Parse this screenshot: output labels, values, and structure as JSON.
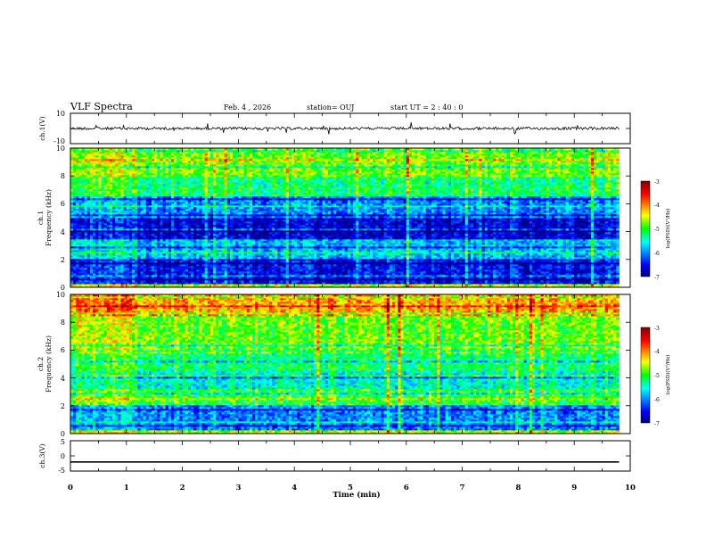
{
  "header": {
    "title": "VLF Spectra",
    "date": "Feb. 4 , 2026",
    "station": "station= OUJ",
    "start": "start  UT =   2 : 40 : 0"
  },
  "chart_data": [
    {
      "id": "ch1-waveform",
      "type": "line",
      "title": "",
      "ylabel": "ch.1(V)",
      "ylim": [
        -10,
        10
      ],
      "yticks": [
        "10",
        "-10"
      ],
      "xlim": [
        0,
        10
      ],
      "trace_level": 0,
      "description_series": "noisy voltage trace near 0 V with sporadic impulsive spikes"
    },
    {
      "id": "ch1-spectrogram",
      "type": "heatmap",
      "ylabel": "ch.1\nFrequency (kHz)",
      "ylim": [
        0,
        10
      ],
      "yticks": [
        "0",
        "2",
        "4",
        "6",
        "8",
        "10"
      ],
      "xlim": [
        0,
        10
      ],
      "colorbar": {
        "label": "log(PSD)(V²/Hz)",
        "range": [
          -7,
          -3
        ],
        "ticks": [
          "-3",
          "-4",
          "-5",
          "-6",
          "-7"
        ]
      },
      "data_end_min": 9.8,
      "segments_min": [
        0,
        1.2,
        1.7,
        9.55,
        9.8
      ],
      "bands": [
        {
          "from_khz": 8.0,
          "to_khz": 10.0,
          "level": 0.55
        },
        {
          "from_khz": 6.5,
          "to_khz": 8.0,
          "level": 0.45
        },
        {
          "from_khz": 5.0,
          "to_khz": 6.5,
          "level": 0.25
        },
        {
          "from_khz": 3.5,
          "to_khz": 5.0,
          "level": 0.08
        },
        {
          "from_khz": 2.0,
          "to_khz": 3.5,
          "level": 0.3
        },
        {
          "from_khz": 0.3,
          "to_khz": 2.0,
          "level": 0.12
        },
        {
          "from_khz": 0.0,
          "to_khz": 0.3,
          "level": 0.6
        }
      ]
    },
    {
      "id": "ch2-spectrogram",
      "type": "heatmap",
      "ylabel": "ch.2\nFrequency (kHz)",
      "ylim": [
        0,
        10
      ],
      "yticks": [
        "0",
        "2",
        "4",
        "6",
        "8",
        "10"
      ],
      "xlim": [
        0,
        10
      ],
      "colorbar": {
        "label": "log(PSD)(V²/Hz)",
        "range": [
          -7,
          -3
        ],
        "ticks": [
          "-3",
          "-4",
          "-5",
          "-6",
          "-7"
        ]
      },
      "data_end_min": 9.8,
      "segments_min": [
        0,
        1.2,
        1.7,
        9.55,
        9.8
      ],
      "bands": [
        {
          "from_khz": 8.5,
          "to_khz": 10.0,
          "level": 0.72
        },
        {
          "from_khz": 6.0,
          "to_khz": 8.5,
          "level": 0.55
        },
        {
          "from_khz": 4.5,
          "to_khz": 6.0,
          "level": 0.45
        },
        {
          "from_khz": 3.2,
          "to_khz": 4.5,
          "level": 0.38
        },
        {
          "from_khz": 2.0,
          "to_khz": 3.2,
          "level": 0.5
        },
        {
          "from_khz": 0.3,
          "to_khz": 2.0,
          "level": 0.25
        },
        {
          "from_khz": 0.0,
          "to_khz": 0.3,
          "level": 0.6
        }
      ]
    },
    {
      "id": "ch3-waveform",
      "type": "line",
      "ylabel": "ch.3(V)",
      "ylim": [
        -5,
        5
      ],
      "yticks": [
        "5",
        "0",
        "-5"
      ],
      "xlim": [
        0,
        10
      ],
      "trace_level": -2,
      "xlabel": "Time (min)",
      "xticks": [
        "0",
        "1",
        "2",
        "3",
        "4",
        "5",
        "6",
        "7",
        "8",
        "9",
        "10"
      ]
    }
  ]
}
